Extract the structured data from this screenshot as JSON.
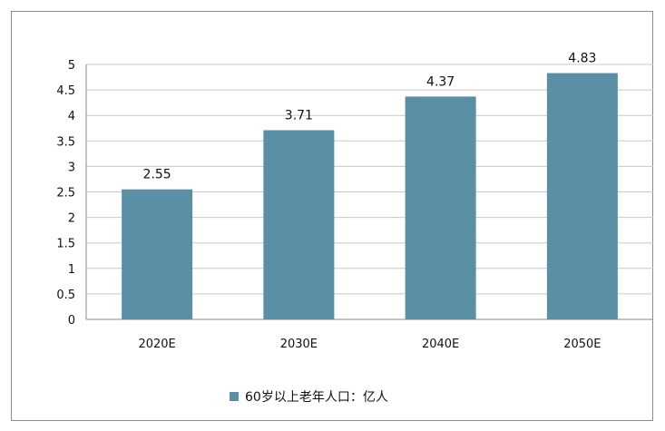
{
  "chart_data": {
    "type": "bar",
    "title": "",
    "xlabel": "",
    "ylabel": "",
    "categories": [
      "2020E",
      "2030E",
      "2040E",
      "2050E"
    ],
    "series": [
      {
        "name": "60岁以上老年人口：亿人",
        "values": [
          2.55,
          3.71,
          4.37,
          4.83
        ],
        "color": "#5b8fa5"
      }
    ],
    "ylim": [
      0,
      5
    ],
    "yticks": [
      "0",
      "0.5",
      "1",
      "1.5",
      "2",
      "2.5",
      "3",
      "3.5",
      "4",
      "4.5",
      "5"
    ],
    "grid": true,
    "legend_position": "bottom"
  }
}
